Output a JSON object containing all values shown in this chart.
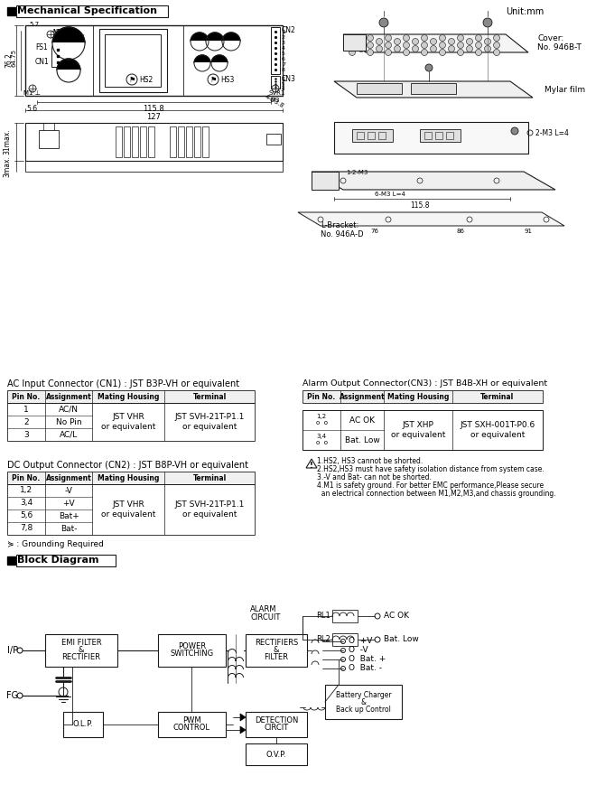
{
  "bg_color": "#ffffff",
  "title": "Mechanical Specification",
  "unit": "Unit:mm",
  "block_title": "Block Diagram",
  "ac_title": "AC Input Connector (CN1) : JST B3P-VH or equivalent",
  "ac_headers": [
    "Pin No.",
    "Assignment",
    "Mating Housing",
    "Terminal"
  ],
  "ac_pin_nos": [
    "1",
    "2",
    "3"
  ],
  "ac_assignments": [
    "AC/N",
    "No Pin",
    "AC/L"
  ],
  "ac_mating": "JST VHR\nor equivalent",
  "ac_terminal": "JST SVH-21T-P1.1\nor equivalent",
  "dc_title": "DC Output Connector (CN2) : JST B8P-VH or equivalent",
  "dc_headers": [
    "Pin No.",
    "Assignment",
    "Mating Housing",
    "Terminal"
  ],
  "dc_pin_nos": [
    "1,2",
    "3,4",
    "5,6",
    "7,8"
  ],
  "dc_assignments": [
    "-V",
    "+V",
    "Bat+",
    "Bat-"
  ],
  "dc_mating": "JST VHR\nor equivalent",
  "dc_terminal": "JST SVH-21T-P1.1\nor equivalent",
  "ground_note": "⋟ : Grounding Required",
  "alarm_title": "Alarm Output Connector(CN3) : JST B4B-XH or equivalent",
  "alarm_headers": [
    "Pin No.",
    "Assignment",
    "Mating Housing",
    "Terminal"
  ],
  "alarm_pin_nos": [
    "1,2\no  o",
    "3,4\no  o"
  ],
  "alarm_assignments": [
    "AC OK",
    "Bat. Low"
  ],
  "alarm_mating": "JST XHP\nor equivalent",
  "alarm_terminal": "JST SXH-001T-P0.6\nor equivalent",
  "notes": [
    "1.HS2, HS3 cannot be shorted.",
    "2.HS2,HS3 must have safety isolation distance from system case.",
    "3.-V and Bat- can not be shorted.",
    "4.M1 is safety ground. For better EMC performance,Please secure",
    "  an electrical connection between M1,M2,M3,and chassis grounding."
  ],
  "cover_label": "Cover:\nNo. 946B-T",
  "mylar_label": "Mylar film",
  "lbracket_label": "L-Bracket:\nNo. 946A-D",
  "dim_127": "127",
  "dim_1158": "115.8",
  "dim_56": "5.6",
  "dim_762": "76.2",
  "dim_6475": "64.75",
  "dim_57": "5.7",
  "dim_31max": "31max.",
  "dim_3max": "3max.",
  "dim_2m3l4": "2-M3 L=4",
  "dim_12m3": "1-2-M3",
  "dim_6m3l4": "6-M3 L=4",
  "dim_1158b": "115.8"
}
